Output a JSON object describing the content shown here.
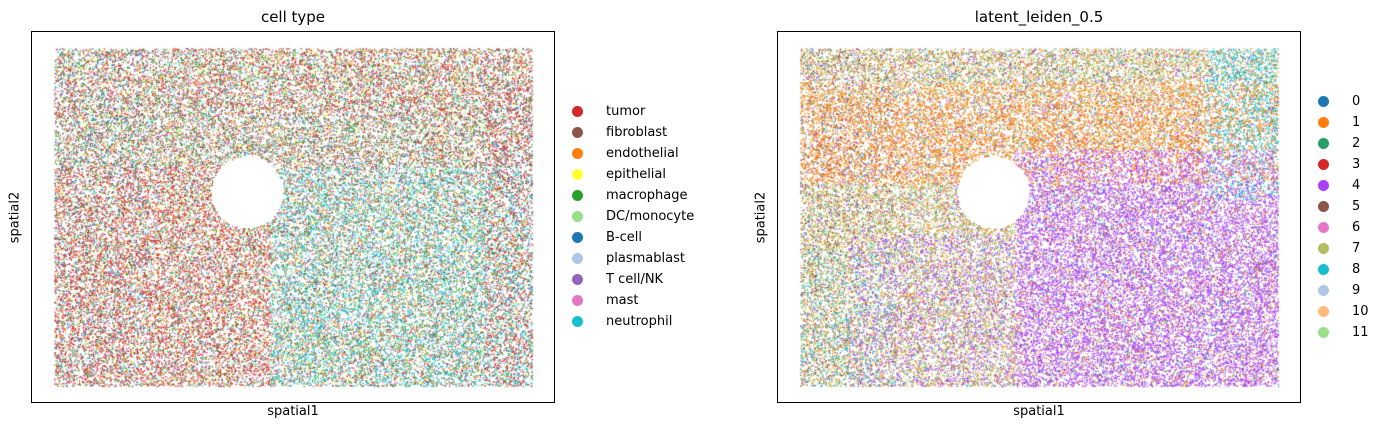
{
  "chart_data": [
    {
      "type": "scatter",
      "title": "cell type",
      "xlabel": "spatial1",
      "ylabel": "spatial2",
      "xticks": [],
      "yticks": [],
      "grid": false,
      "legend_position": "right",
      "legend": [
        {
          "label": "tumor",
          "color": "#d62728"
        },
        {
          "label": "fibroblast",
          "color": "#8c564b"
        },
        {
          "label": "endothelial",
          "color": "#ff7f0e"
        },
        {
          "label": "epithelial",
          "color": "#ffff33"
        },
        {
          "label": "macrophage",
          "color": "#2ca02c"
        },
        {
          "label": "DC/monocyte",
          "color": "#98df8a"
        },
        {
          "label": "B-cell",
          "color": "#1f77b4"
        },
        {
          "label": "plasmablast",
          "color": "#aec7e8"
        },
        {
          "label": "T cell/NK",
          "color": "#9467bd"
        },
        {
          "label": "mast",
          "color": "#e377c2"
        },
        {
          "label": "neutrophil",
          "color": "#17becf"
        }
      ]
    },
    {
      "type": "scatter",
      "title": "latent_leiden_0.5",
      "xlabel": "spatial1",
      "ylabel": "spatial2",
      "xticks": [],
      "yticks": [],
      "grid": false,
      "legend_position": "right",
      "legend": [
        {
          "label": "0",
          "color": "#1f77b4"
        },
        {
          "label": "1",
          "color": "#ff7f0e"
        },
        {
          "label": "2",
          "color": "#279e68"
        },
        {
          "label": "3",
          "color": "#d62728"
        },
        {
          "label": "4",
          "color": "#aa40fc"
        },
        {
          "label": "5",
          "color": "#8c564b"
        },
        {
          "label": "6",
          "color": "#e377c2"
        },
        {
          "label": "7",
          "color": "#b5bd61"
        },
        {
          "label": "8",
          "color": "#17becf"
        },
        {
          "label": "9",
          "color": "#aec7e8"
        },
        {
          "label": "10",
          "color": "#ffbb78"
        },
        {
          "label": "11",
          "color": "#98df8a"
        }
      ]
    }
  ]
}
